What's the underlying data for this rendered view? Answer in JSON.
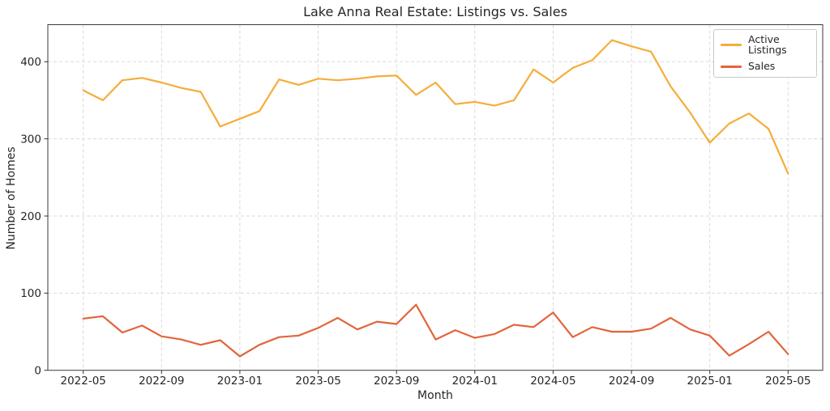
{
  "figure": {
    "kind": "matplotlib-style line chart"
  },
  "style": {
    "background": "#ffffff",
    "grid_color": "#d9d9d9",
    "spine_color": "#3a3a3a",
    "tick_color": "#333333",
    "text_color": "#262626"
  },
  "chart_data": {
    "type": "line",
    "title": "Lake Anna Real Estate: Listings vs. Sales",
    "xlabel": "Month",
    "ylabel": "Number of Homes",
    "x": [
      "2022-05",
      "2022-06",
      "2022-07",
      "2022-08",
      "2022-09",
      "2022-10",
      "2022-11",
      "2022-12",
      "2023-01",
      "2023-02",
      "2023-03",
      "2023-04",
      "2023-05",
      "2023-06",
      "2023-07",
      "2023-08",
      "2023-09",
      "2023-10",
      "2023-11",
      "2023-12",
      "2024-01",
      "2024-02",
      "2024-03",
      "2024-04",
      "2024-05",
      "2024-06",
      "2024-07",
      "2024-08",
      "2024-09",
      "2024-10",
      "2024-11",
      "2024-12",
      "2025-01",
      "2025-02",
      "2025-03",
      "2025-04",
      "2025-05"
    ],
    "series": [
      {
        "name": "Active Listings",
        "color": "#f5ad3a",
        "values": [
          363,
          350,
          376,
          379,
          373,
          366,
          361,
          316,
          326,
          336,
          377,
          370,
          378,
          376,
          378,
          381,
          382,
          357,
          373,
          345,
          348,
          343,
          350,
          390,
          373,
          392,
          402,
          428,
          420,
          413,
          368,
          334,
          295,
          320,
          333,
          313,
          255
        ]
      },
      {
        "name": "Sales",
        "color": "#e2653c",
        "values": [
          67,
          70,
          49,
          58,
          44,
          40,
          33,
          39,
          18,
          33,
          43,
          45,
          55,
          68,
          53,
          63,
          60,
          85,
          40,
          52,
          42,
          47,
          59,
          56,
          75,
          43,
          56,
          50,
          50,
          54,
          68,
          53,
          45,
          19,
          34,
          50,
          21
        ]
      }
    ],
    "ylim": [
      0,
      448
    ],
    "yticks": [
      0,
      100,
      200,
      300,
      400
    ],
    "xtick_indices": [
      0,
      4,
      8,
      12,
      16,
      20,
      24,
      28,
      32,
      36
    ],
    "grid": true,
    "grid_style": "dashed",
    "legend_position": "upper right"
  }
}
